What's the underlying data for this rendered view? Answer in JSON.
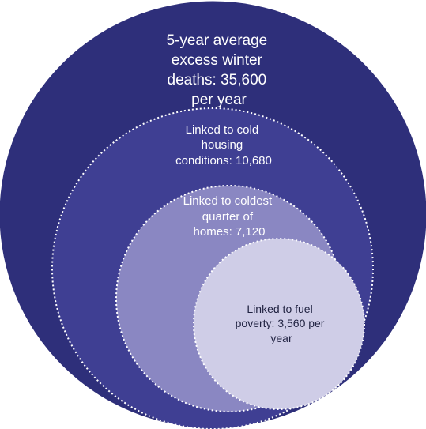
{
  "diagram": {
    "colors": {
      "outer": "#2e2f7a",
      "second": "#3f3f93",
      "third": "#8a87c2",
      "inner": "#cfcde7",
      "border": "#ffffff"
    },
    "circles": [
      {
        "lines": [
          "5-year average",
          "excess winter",
          "deaths: 35,600",
          "per year"
        ]
      },
      {
        "lines": [
          "Linked to cold",
          "housing",
          "conditions: 10,680"
        ]
      },
      {
        "lines": [
          "Linked to coldest",
          "quarter of",
          "homes: 7,120"
        ]
      },
      {
        "lines": [
          "Linked to fuel",
          "poverty: 3,560 per",
          "year"
        ]
      }
    ]
  }
}
